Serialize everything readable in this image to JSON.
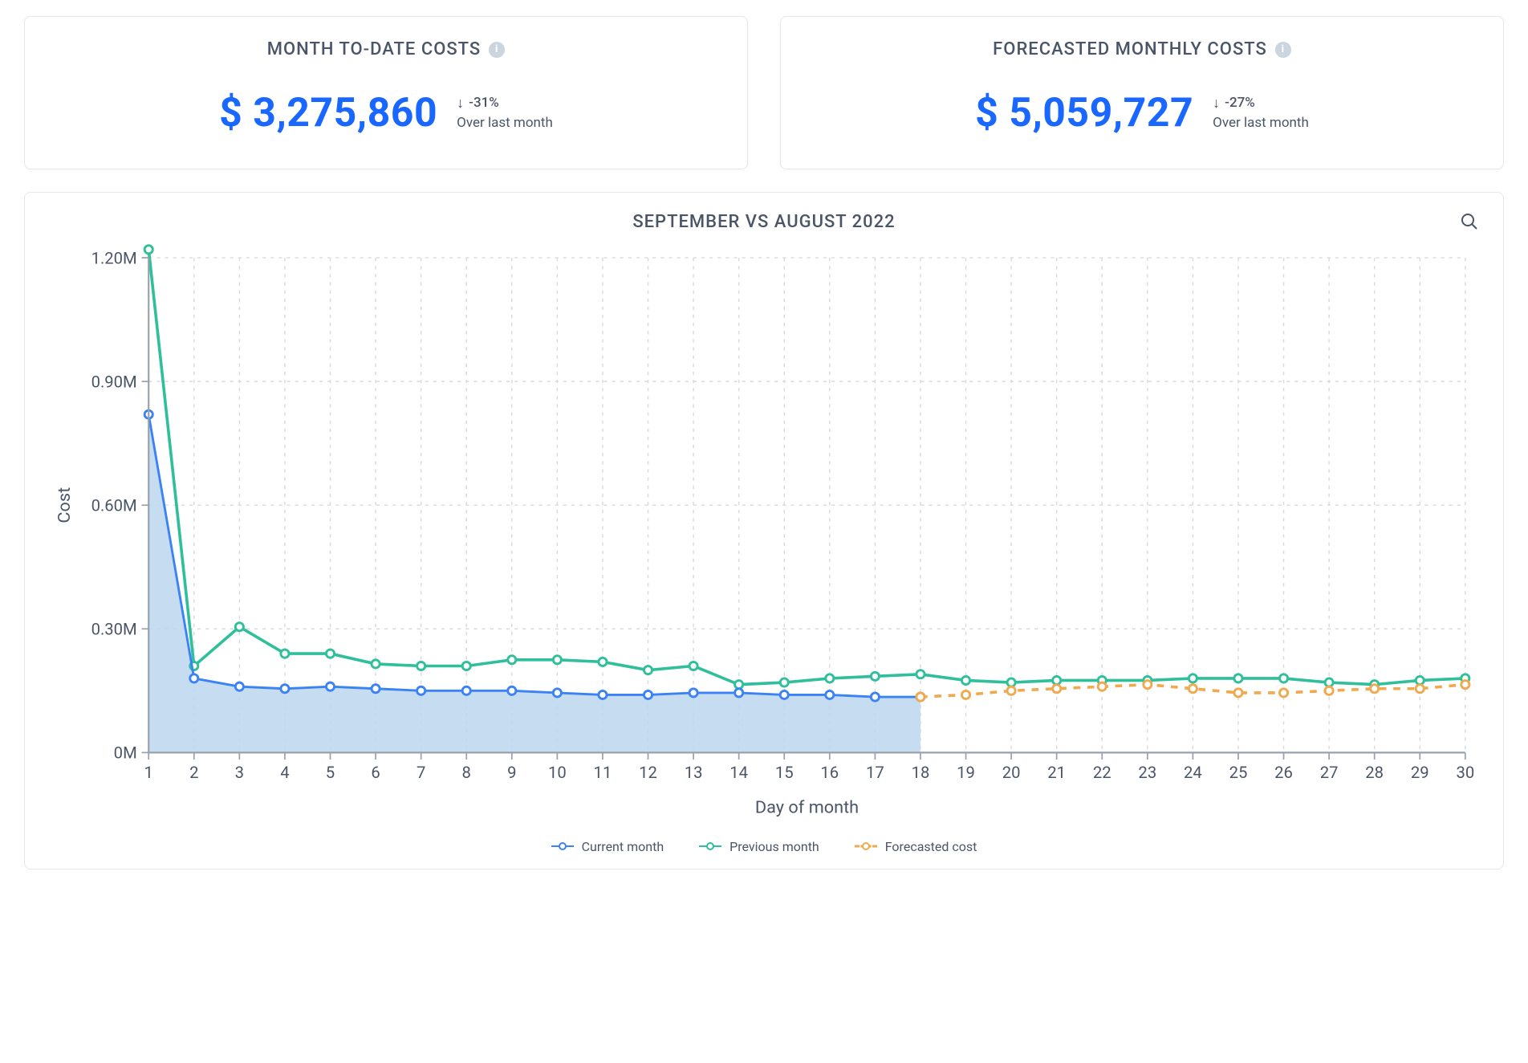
{
  "cards": [
    {
      "id": "mtd",
      "title": "MONTH TO-DATE COSTS",
      "value": "$ 3,275,860",
      "delta_pct": "-31%",
      "delta_caption": "Over last month",
      "value_color": "#1a67ff"
    },
    {
      "id": "forecast",
      "title": "FORECASTED MONTHLY COSTS",
      "value": "$ 5,059,727",
      "delta_pct": "-27%",
      "delta_caption": "Over last month",
      "value_color": "#1a67ff"
    }
  ],
  "chart": {
    "title": "SEPTEMBER VS AUGUST 2022",
    "type": "line-area",
    "xlabel": "Day of month",
    "ylabel": "Cost",
    "x_domain": [
      1,
      30
    ],
    "x_ticks": [
      1,
      2,
      3,
      4,
      5,
      6,
      7,
      8,
      9,
      10,
      11,
      12,
      13,
      14,
      15,
      16,
      17,
      18,
      19,
      20,
      21,
      22,
      23,
      24,
      25,
      26,
      27,
      28,
      29,
      30
    ],
    "y_domain": [
      0,
      1.2
    ],
    "y_ticks": [
      0,
      0.3,
      0.6,
      0.9,
      1.2
    ],
    "y_tick_labels": [
      "0M",
      "0.30M",
      "0.60M",
      "0.90M",
      "1.20M"
    ],
    "background_color": "#ffffff",
    "grid_color": "#d7dbe0",
    "axis_color": "#9aa2ad",
    "text_color": "#4a5568",
    "label_fontsize": 14,
    "series": {
      "current": {
        "label": "Current month",
        "color": "#3b82f6",
        "fill_color": "#bcd7ef",
        "fill_opacity": 0.85,
        "line_width": 2,
        "marker": "circle-open",
        "x": [
          1,
          2,
          3,
          4,
          5,
          6,
          7,
          8,
          9,
          10,
          11,
          12,
          13,
          14,
          15,
          16,
          17,
          18
        ],
        "y": [
          0.82,
          0.18,
          0.16,
          0.155,
          0.16,
          0.155,
          0.15,
          0.15,
          0.15,
          0.145,
          0.14,
          0.14,
          0.145,
          0.145,
          0.14,
          0.14,
          0.135,
          0.135
        ]
      },
      "previous": {
        "label": "Previous month",
        "color": "#2fbf9b",
        "line_width": 2.5,
        "marker": "circle-open",
        "x": [
          1,
          2,
          3,
          4,
          5,
          6,
          7,
          8,
          9,
          10,
          11,
          12,
          13,
          14,
          15,
          16,
          17,
          18,
          19,
          20,
          21,
          22,
          23,
          24,
          25,
          26,
          27,
          28,
          29,
          30
        ],
        "y": [
          1.22,
          0.21,
          0.305,
          0.24,
          0.24,
          0.215,
          0.21,
          0.21,
          0.225,
          0.225,
          0.22,
          0.2,
          0.21,
          0.165,
          0.17,
          0.18,
          0.185,
          0.19,
          0.175,
          0.17,
          0.175,
          0.175,
          0.175,
          0.18,
          0.18,
          0.18,
          0.17,
          0.165,
          0.175,
          0.18
        ]
      },
      "forecast": {
        "label": "Forecasted cost",
        "color": "#f0a94e",
        "line_width": 2.5,
        "dash": "6 6",
        "marker": "circle-open",
        "x": [
          18,
          19,
          20,
          21,
          22,
          23,
          24,
          25,
          26,
          27,
          28,
          29,
          30
        ],
        "y": [
          0.135,
          0.14,
          0.15,
          0.155,
          0.16,
          0.165,
          0.155,
          0.145,
          0.145,
          0.15,
          0.155,
          0.155,
          0.165
        ]
      }
    },
    "legend_order": [
      "current",
      "previous",
      "forecast"
    ]
  }
}
